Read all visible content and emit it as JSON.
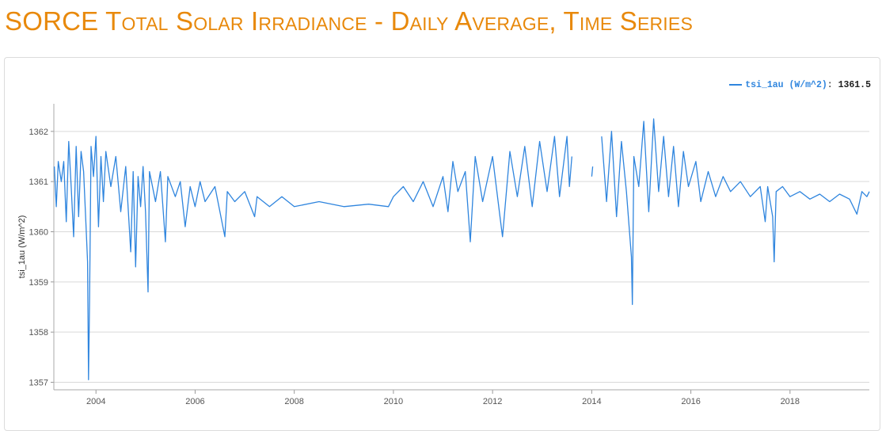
{
  "page": {
    "title": "SORCE Total Solar Irradiance - Daily Average, Time Series"
  },
  "legend": {
    "series_label": "tsi_1au (W/m^2)",
    "separator": ":",
    "value": "1361.5"
  },
  "colors": {
    "title": "#e8890c",
    "line": "#2f85de",
    "grid": "#d9d9d9"
  },
  "chart_data": {
    "type": "line",
    "title": "",
    "xlabel": "",
    "ylabel": "tsi_1au (W/m^2)",
    "xlim": [
      2003.15,
      2019.6
    ],
    "ylim": [
      1356.85,
      1362.55
    ],
    "grid": true,
    "legend_position": "top-right",
    "x_ticks": [
      "2004",
      "2006",
      "2008",
      "2010",
      "2012",
      "2014",
      "2016",
      "2018"
    ],
    "y_ticks": [
      "1357",
      "1358",
      "1359",
      "1360",
      "1361",
      "1362"
    ],
    "series": [
      {
        "name": "tsi_1au (W/m^2)",
        "segments": [
          [
            [
              2003.16,
              1361.3
            ],
            [
              2003.2,
              1360.5
            ],
            [
              2003.24,
              1361.4
            ],
            [
              2003.3,
              1361.0
            ],
            [
              2003.35,
              1361.4
            ],
            [
              2003.4,
              1360.2
            ],
            [
              2003.45,
              1361.8
            ],
            [
              2003.5,
              1360.9
            ],
            [
              2003.55,
              1359.9
            ],
            [
              2003.6,
              1361.7
            ],
            [
              2003.65,
              1360.3
            ],
            [
              2003.7,
              1361.6
            ],
            [
              2003.75,
              1361.2
            ],
            [
              2003.8,
              1360.1
            ],
            [
              2003.83,
              1359.4
            ],
            [
              2003.85,
              1357.05
            ],
            [
              2003.87,
              1358.6
            ],
            [
              2003.9,
              1361.7
            ],
            [
              2003.95,
              1361.1
            ],
            [
              2004.0,
              1361.9
            ],
            [
              2004.05,
              1360.1
            ],
            [
              2004.1,
              1361.5
            ],
            [
              2004.15,
              1360.6
            ],
            [
              2004.2,
              1361.6
            ],
            [
              2004.3,
              1360.9
            ],
            [
              2004.4,
              1361.5
            ],
            [
              2004.5,
              1360.4
            ],
            [
              2004.6,
              1361.3
            ],
            [
              2004.7,
              1359.6
            ],
            [
              2004.75,
              1361.2
            ],
            [
              2004.8,
              1359.3
            ],
            [
              2004.85,
              1361.1
            ],
            [
              2004.9,
              1360.5
            ],
            [
              2004.95,
              1361.3
            ],
            [
              2005.0,
              1360.4
            ],
            [
              2005.05,
              1358.8
            ],
            [
              2005.08,
              1361.2
            ],
            [
              2005.2,
              1360.6
            ],
            [
              2005.3,
              1361.2
            ],
            [
              2005.4,
              1359.8
            ],
            [
              2005.45,
              1361.1
            ],
            [
              2005.6,
              1360.7
            ],
            [
              2005.7,
              1361.0
            ],
            [
              2005.8,
              1360.1
            ],
            [
              2005.9,
              1360.9
            ],
            [
              2006.0,
              1360.5
            ],
            [
              2006.1,
              1361.0
            ],
            [
              2006.2,
              1360.6
            ],
            [
              2006.4,
              1360.9
            ],
            [
              2006.6,
              1359.9
            ],
            [
              2006.65,
              1360.8
            ],
            [
              2006.8,
              1360.6
            ],
            [
              2007.0,
              1360.8
            ],
            [
              2007.2,
              1360.3
            ],
            [
              2007.25,
              1360.7
            ],
            [
              2007.5,
              1360.5
            ],
            [
              2007.75,
              1360.7
            ],
            [
              2008.0,
              1360.5
            ],
            [
              2008.5,
              1360.6
            ],
            [
              2009.0,
              1360.5
            ],
            [
              2009.5,
              1360.55
            ],
            [
              2009.9,
              1360.5
            ],
            [
              2010.0,
              1360.7
            ],
            [
              2010.2,
              1360.9
            ],
            [
              2010.4,
              1360.6
            ],
            [
              2010.6,
              1361.0
            ],
            [
              2010.8,
              1360.5
            ],
            [
              2011.0,
              1361.1
            ],
            [
              2011.1,
              1360.4
            ],
            [
              2011.2,
              1361.4
            ],
            [
              2011.3,
              1360.8
            ],
            [
              2011.45,
              1361.2
            ],
            [
              2011.55,
              1359.8
            ],
            [
              2011.65,
              1361.5
            ],
            [
              2011.8,
              1360.6
            ],
            [
              2012.0,
              1361.5
            ],
            [
              2012.15,
              1360.3
            ],
            [
              2012.2,
              1359.9
            ],
            [
              2012.35,
              1361.6
            ],
            [
              2012.5,
              1360.7
            ],
            [
              2012.65,
              1361.7
            ],
            [
              2012.8,
              1360.5
            ],
            [
              2012.95,
              1361.8
            ],
            [
              2013.1,
              1360.8
            ],
            [
              2013.25,
              1361.9
            ],
            [
              2013.35,
              1360.7
            ],
            [
              2013.5,
              1361.9
            ],
            [
              2013.55,
              1360.9
            ],
            [
              2013.6,
              1361.5
            ]
          ],
          [
            [
              2014.0,
              1361.1
            ],
            [
              2014.02,
              1361.3
            ]
          ],
          [
            [
              2014.2,
              1361.9
            ],
            [
              2014.3,
              1360.6
            ],
            [
              2014.4,
              1362.0
            ],
            [
              2014.5,
              1360.3
            ],
            [
              2014.6,
              1361.8
            ],
            [
              2014.7,
              1360.8
            ],
            [
              2014.8,
              1359.5
            ],
            [
              2014.82,
              1358.55
            ],
            [
              2014.85,
              1361.5
            ],
            [
              2014.95,
              1360.9
            ],
            [
              2015.05,
              1362.2
            ],
            [
              2015.15,
              1360.4
            ],
            [
              2015.25,
              1362.25
            ],
            [
              2015.35,
              1360.8
            ],
            [
              2015.45,
              1361.9
            ],
            [
              2015.55,
              1360.7
            ],
            [
              2015.65,
              1361.7
            ],
            [
              2015.75,
              1360.5
            ],
            [
              2015.85,
              1361.6
            ],
            [
              2015.95,
              1360.9
            ],
            [
              2016.1,
              1361.4
            ],
            [
              2016.2,
              1360.6
            ],
            [
              2016.35,
              1361.2
            ],
            [
              2016.5,
              1360.7
            ],
            [
              2016.65,
              1361.1
            ],
            [
              2016.8,
              1360.8
            ],
            [
              2017.0,
              1361.0
            ],
            [
              2017.2,
              1360.7
            ],
            [
              2017.4,
              1360.9
            ],
            [
              2017.5,
              1360.2
            ],
            [
              2017.55,
              1360.9
            ],
            [
              2017.65,
              1360.3
            ],
            [
              2017.68,
              1359.4
            ],
            [
              2017.72,
              1360.8
            ],
            [
              2017.85,
              1360.9
            ],
            [
              2018.0,
              1360.7
            ],
            [
              2018.2,
              1360.8
            ],
            [
              2018.4,
              1360.65
            ],
            [
              2018.6,
              1360.75
            ],
            [
              2018.8,
              1360.6
            ],
            [
              2019.0,
              1360.75
            ],
            [
              2019.2,
              1360.65
            ],
            [
              2019.35,
              1360.35
            ],
            [
              2019.45,
              1360.8
            ],
            [
              2019.55,
              1360.7
            ],
            [
              2019.6,
              1360.8
            ]
          ]
        ]
      }
    ]
  }
}
